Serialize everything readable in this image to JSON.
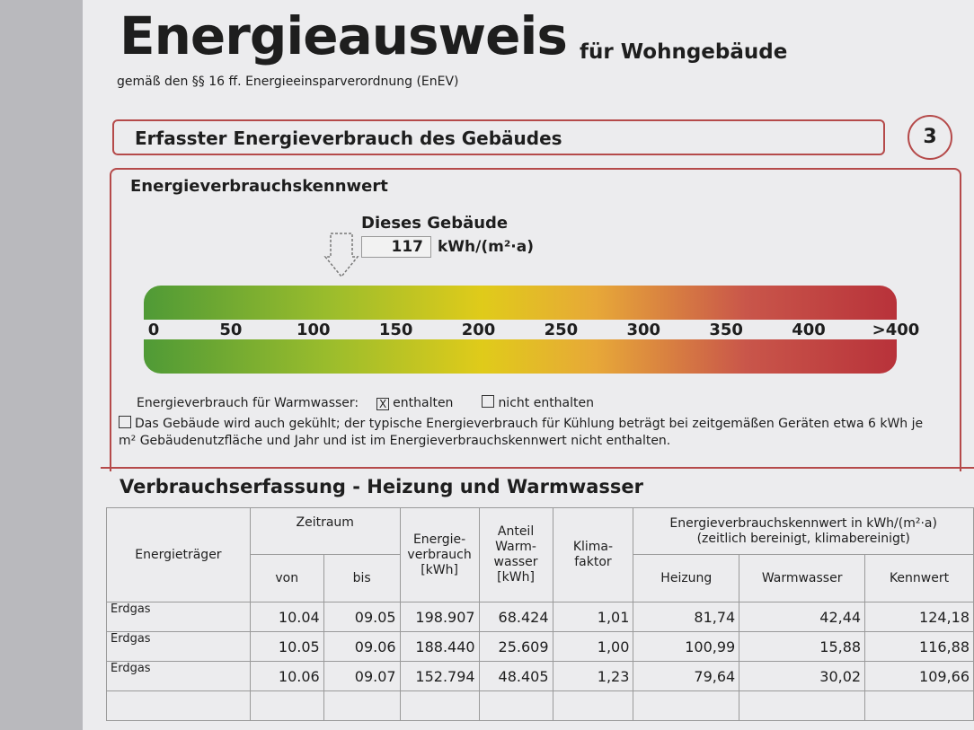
{
  "header": {
    "title": "Energieausweis",
    "subtitle": "für Wohngebäude",
    "legal": "gemäß den §§ 16 ff. Energieeinsparverordnung (EnEV)"
  },
  "section": {
    "title": "Erfasster Energieverbrauch des Gebäudes",
    "page": "3"
  },
  "kennwert": {
    "title": "Energieverbrauchskennwert",
    "building_label": "Dieses Gebäude",
    "value": 117,
    "unit": "kWh/(m²·a)",
    "scale": {
      "ticks": [
        0,
        50,
        100,
        150,
        200,
        250,
        300,
        350,
        400
      ],
      "overflow": ">400"
    },
    "warmwasser": {
      "label": "Energieverbrauch für Warmwasser:",
      "included": "enthalten",
      "not_included": "nicht enthalten"
    },
    "cooling_note": "Das Gebäude wird auch gekühlt; der typische Energieverbrauch für Kühlung beträgt bei zeitgemäßen Geräten etwa 6 kWh je m² Gebäudenutzfläche und Jahr und ist im Energieverbrauchskennwert nicht enthalten."
  },
  "table": {
    "title": "Verbrauchserfassung - Heizung und Warmwasser",
    "headers": {
      "carrier": "Energieträger",
      "period": "Zeitraum",
      "from": "von",
      "to": "bis",
      "consumption": "Energie-\nverbrauch\n[kWh]",
      "share": "Anteil\nWarm-\nwasser\n[kWh]",
      "climate": "Klima-\nfaktor",
      "kennwert": "Energieverbrauchskennwert in kWh/(m²·a)\n(zeitlich bereinigt, klimabereinigt)",
      "heating": "Heizung",
      "hotwater": "Warmwasser",
      "total": "Kennwert"
    },
    "rows": [
      [
        "Erdgas",
        "10.04",
        "09.05",
        "198.907",
        "68.424",
        "1,01",
        "81,74",
        "42,44",
        "124,18"
      ],
      [
        "Erdgas",
        "10.05",
        "09.06",
        "188.440",
        "25.609",
        "1,00",
        "100,99",
        "15,88",
        "116,88"
      ],
      [
        "Erdgas",
        "10.06",
        "09.07",
        "152.794",
        "48.405",
        "1,23",
        "79,64",
        "30,02",
        "109,66"
      ]
    ]
  }
}
